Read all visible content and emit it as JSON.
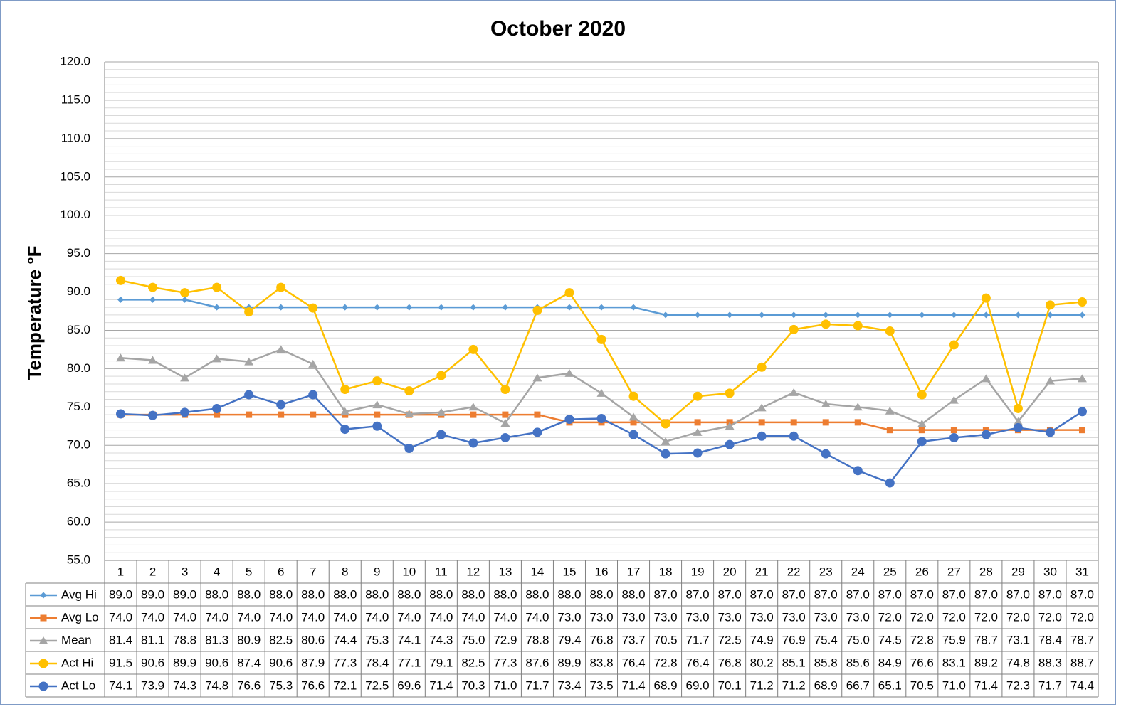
{
  "chart_data": {
    "type": "line",
    "title": "October 2020",
    "y_label": "Temperature °F",
    "categories": [
      "1",
      "2",
      "3",
      "4",
      "5",
      "6",
      "7",
      "8",
      "9",
      "10",
      "11",
      "12",
      "13",
      "14",
      "15",
      "16",
      "17",
      "18",
      "19",
      "20",
      "21",
      "22",
      "23",
      "24",
      "25",
      "26",
      "27",
      "28",
      "29",
      "30",
      "31"
    ],
    "ylim": [
      55,
      120
    ],
    "yticks": [
      {
        "value": 55,
        "label": "55.0"
      },
      {
        "value": 60,
        "label": "60.0"
      },
      {
        "value": 65,
        "label": "65.0"
      },
      {
        "value": 70,
        "label": "70.0"
      },
      {
        "value": 75,
        "label": "75.0"
      },
      {
        "value": 80,
        "label": "80.0"
      },
      {
        "value": 85,
        "label": "85.0"
      },
      {
        "value": 90,
        "label": "90.0"
      },
      {
        "value": 95,
        "label": "95.0"
      },
      {
        "value": 100,
        "label": "100.0"
      },
      {
        "value": 105,
        "label": "105.0"
      },
      {
        "value": 110,
        "label": "110.0"
      },
      {
        "value": 115,
        "label": "115.0"
      },
      {
        "value": 120,
        "label": "120.0"
      }
    ],
    "grid": true,
    "minor_grid": true,
    "data_table": true,
    "series": [
      {
        "name": "Avg Hi",
        "color": "#5b9bd5",
        "marker": "diamond",
        "values": [
          89,
          89,
          89,
          88,
          88,
          88,
          88,
          88,
          88,
          88,
          88,
          88,
          88,
          88,
          88,
          88,
          88,
          87,
          87,
          87,
          87,
          87,
          87,
          87,
          87,
          87,
          87,
          87,
          87,
          87,
          87
        ],
        "value_labels": [
          "89.0",
          "89.0",
          "89.0",
          "88.0",
          "88.0",
          "88.0",
          "88.0",
          "88.0",
          "88.0",
          "88.0",
          "88.0",
          "88.0",
          "88.0",
          "88.0",
          "88.0",
          "88.0",
          "88.0",
          "87.0",
          "87.0",
          "87.0",
          "87.0",
          "87.0",
          "87.0",
          "87.0",
          "87.0",
          "87.0",
          "87.0",
          "87.0",
          "87.0",
          "87.0",
          "87.0"
        ]
      },
      {
        "name": "Avg Lo",
        "color": "#ed7d31",
        "marker": "square",
        "values": [
          74,
          74,
          74,
          74,
          74,
          74,
          74,
          74,
          74,
          74,
          74,
          74,
          74,
          74,
          73,
          73,
          73,
          73,
          73,
          73,
          73,
          73,
          73,
          73,
          72,
          72,
          72,
          72,
          72,
          72,
          72
        ],
        "value_labels": [
          "74.0",
          "74.0",
          "74.0",
          "74.0",
          "74.0",
          "74.0",
          "74.0",
          "74.0",
          "74.0",
          "74.0",
          "74.0",
          "74.0",
          "74.0",
          "74.0",
          "73.0",
          "73.0",
          "73.0",
          "73.0",
          "73.0",
          "73.0",
          "73.0",
          "73.0",
          "73.0",
          "73.0",
          "72.0",
          "72.0",
          "72.0",
          "72.0",
          "72.0",
          "72.0",
          "72.0"
        ]
      },
      {
        "name": "Mean",
        "color": "#a5a5a5",
        "marker": "triangle",
        "values": [
          81.4,
          81.1,
          78.8,
          81.3,
          80.9,
          82.5,
          80.6,
          74.4,
          75.3,
          74.1,
          74.3,
          75.0,
          72.9,
          78.8,
          79.4,
          76.8,
          73.7,
          70.5,
          71.7,
          72.5,
          74.9,
          76.9,
          75.4,
          75.0,
          74.5,
          72.8,
          75.9,
          78.7,
          73.1,
          78.4,
          78.7
        ],
        "value_labels": [
          "81.4",
          "81.1",
          "78.8",
          "81.3",
          "80.9",
          "82.5",
          "80.6",
          "74.4",
          "75.3",
          "74.1",
          "74.3",
          "75.0",
          "72.9",
          "78.8",
          "79.4",
          "76.8",
          "73.7",
          "70.5",
          "71.7",
          "72.5",
          "74.9",
          "76.9",
          "75.4",
          "75.0",
          "74.5",
          "72.8",
          "75.9",
          "78.7",
          "73.1",
          "78.4",
          "78.7"
        ]
      },
      {
        "name": "Act Hi",
        "color": "#ffc000",
        "marker": "circle",
        "values": [
          91.5,
          90.6,
          89.9,
          90.6,
          87.4,
          90.6,
          87.9,
          77.3,
          78.4,
          77.1,
          79.1,
          82.5,
          77.3,
          87.6,
          89.9,
          83.8,
          76.4,
          72.8,
          76.4,
          76.8,
          80.2,
          85.1,
          85.8,
          85.6,
          84.9,
          76.6,
          83.1,
          89.2,
          74.8,
          88.3,
          88.7
        ],
        "value_labels": [
          "91.5",
          "90.6",
          "89.9",
          "90.6",
          "87.4",
          "90.6",
          "87.9",
          "77.3",
          "78.4",
          "77.1",
          "79.1",
          "82.5",
          "77.3",
          "87.6",
          "89.9",
          "83.8",
          "76.4",
          "72.8",
          "76.4",
          "76.8",
          "80.2",
          "85.1",
          "85.8",
          "85.6",
          "84.9",
          "76.6",
          "83.1",
          "89.2",
          "74.8",
          "88.3",
          "88.7"
        ]
      },
      {
        "name": "Act Lo",
        "color": "#4472c4",
        "marker": "circle",
        "values": [
          74.1,
          73.9,
          74.3,
          74.8,
          76.6,
          75.3,
          76.6,
          72.1,
          72.5,
          69.6,
          71.4,
          70.3,
          71.0,
          71.7,
          73.4,
          73.5,
          71.4,
          68.9,
          69.0,
          70.1,
          71.2,
          71.2,
          68.9,
          66.7,
          65.1,
          70.5,
          71.0,
          71.4,
          72.3,
          71.7,
          74.4
        ],
        "value_labels": [
          "74.1",
          "73.9",
          "74.3",
          "74.8",
          "76.6",
          "75.3",
          "76.6",
          "72.1",
          "72.5",
          "69.6",
          "71.4",
          "70.3",
          "71.0",
          "71.7",
          "73.4",
          "73.5",
          "71.4",
          "68.9",
          "69.0",
          "70.1",
          "71.2",
          "71.2",
          "68.9",
          "66.7",
          "65.1",
          "70.5",
          "71.0",
          "71.4",
          "72.3",
          "71.7",
          "74.4"
        ]
      }
    ]
  }
}
